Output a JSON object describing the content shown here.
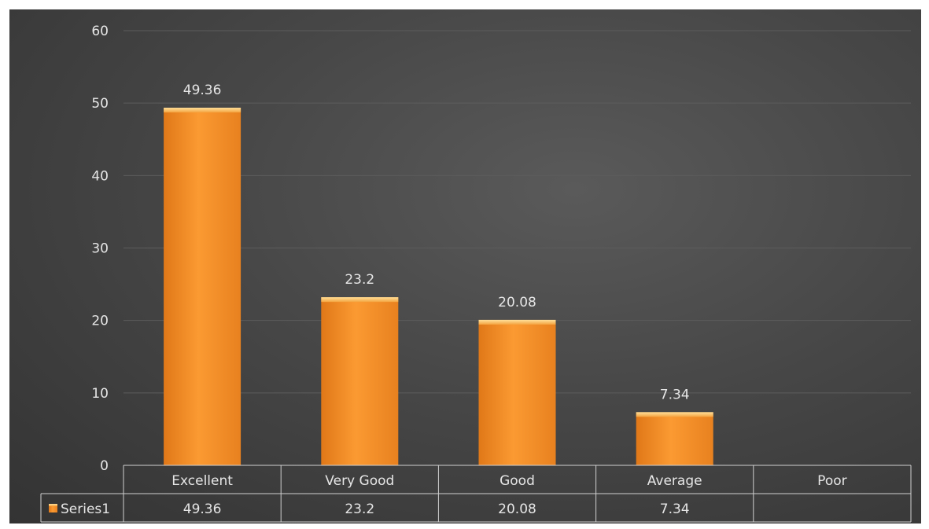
{
  "chart_data": {
    "type": "bar",
    "categories": [
      "Excellent",
      "Very Good",
      "Good",
      "Average",
      "Poor"
    ],
    "series": [
      {
        "name": "Series1",
        "values": [
          49.36,
          23.2,
          20.08,
          7.34,
          null
        ]
      }
    ],
    "data_labels": [
      "49.36",
      "23.2",
      "20.08",
      "7.34",
      ""
    ],
    "table_values": [
      "49.36",
      "23.2",
      "20.08",
      "7.34",
      ""
    ],
    "ylim": [
      0,
      60
    ],
    "yticks": [
      0,
      10,
      20,
      30,
      40,
      50,
      60
    ],
    "grid": true,
    "legend": "data-table",
    "colors": {
      "bar": "#f5932c",
      "bar_top": "#ffd27a",
      "background": "#404040",
      "grid": "#5c5c5c",
      "text": "#e6e6e6",
      "table_line": "#d0d0d0"
    }
  }
}
